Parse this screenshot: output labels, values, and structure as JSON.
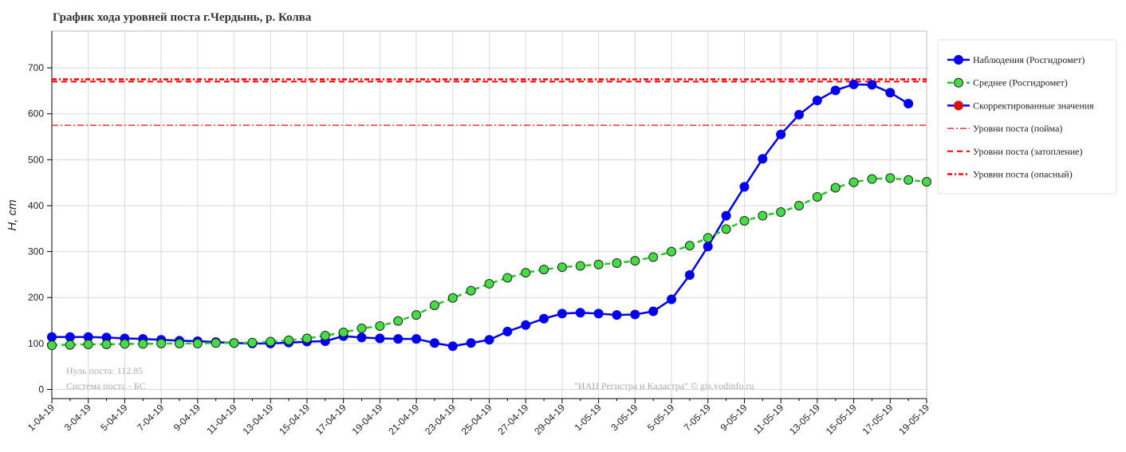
{
  "chart_data": {
    "type": "line",
    "title": "График хода уровней поста г.Чердынь, р. Колва",
    "y_label": "H, cm",
    "annotations": [
      "Нуль поста: 112.85",
      "Система поста - БС",
      "\"ИАЦ Регистра и Кадастра\" © gis.vodinfo.ru"
    ],
    "categories": [
      "1-04-19",
      null,
      "3-04-19",
      null,
      "5-04-19",
      null,
      "7-04-19",
      null,
      "9-04-19",
      null,
      "11-04-19",
      null,
      "13-04-19",
      null,
      "15-04-19",
      null,
      "17-04-19",
      null,
      "19-04-19",
      null,
      "21-04-19",
      null,
      "23-04-19",
      null,
      "25-04-19",
      null,
      "27-04-19",
      null,
      "29-04-19",
      null,
      "1-05-19",
      null,
      "3-05-19",
      null,
      "5-05-19",
      null,
      "7-05-19",
      null,
      "9-05-19",
      null,
      "11-05-19",
      null,
      "13-05-19",
      null,
      "15-05-19",
      null,
      "17-05-19",
      null,
      "19-05-19"
    ],
    "ylim": [
      -20,
      780
    ],
    "yticks": [
      0,
      100,
      200,
      300,
      400,
      500,
      600,
      700
    ],
    "grid": true,
    "series": [
      {
        "name": "Наблюдения (Росгидромет)",
        "color": "#0000ee",
        "marker_color": "#0000ee",
        "dash": "solid",
        "values": [
          114,
          114,
          114,
          113,
          111,
          110,
          108,
          106,
          105,
          103,
          101,
          100,
          100,
          102,
          104,
          105,
          116,
          113,
          111,
          110,
          110,
          101,
          94,
          101,
          108,
          126,
          140,
          154,
          165,
          167,
          165,
          162,
          163,
          170,
          196,
          249,
          311,
          378,
          441,
          502,
          555,
          598,
          629,
          651,
          664,
          663,
          646,
          622,
          null
        ]
      },
      {
        "name": "Среднее (Росгидромет)",
        "color": "#22cc22",
        "marker_color": "#44dd44",
        "dash": "dashed",
        "values": [
          96,
          97,
          98,
          98,
          99,
          99,
          100,
          100,
          100,
          101,
          101,
          102,
          104,
          107,
          111,
          117,
          124,
          133,
          138,
          149,
          162,
          183,
          199,
          215,
          230,
          243,
          254,
          261,
          266,
          269,
          272,
          275,
          280,
          288,
          300,
          313,
          330,
          349,
          367,
          378,
          386,
          400,
          419,
          439,
          451,
          458,
          460,
          456,
          452
        ]
      },
      {
        "name": "Скорректированные значения",
        "color": "#0000ee",
        "marker_color": "#dd1111",
        "dash": "solid",
        "values": [
          null,
          null,
          null,
          null,
          null,
          null,
          null,
          null,
          null,
          null,
          null,
          null,
          null,
          null,
          null,
          null,
          null,
          null,
          null,
          null,
          null,
          null,
          null,
          null,
          null,
          null,
          null,
          null,
          null,
          null,
          null,
          null,
          null,
          null,
          null,
          null,
          null,
          null,
          null,
          null,
          null,
          null,
          null,
          null,
          null,
          null,
          null,
          null,
          null
        ]
      }
    ],
    "levels": [
      {
        "name": "Уровни поста (пойма)",
        "value": 575,
        "color": "#ff0000",
        "dash": "dashdot"
      },
      {
        "name": "Уровни поста (затопление)",
        "value": 670,
        "color": "#ff0000",
        "dash": "dashed"
      },
      {
        "name": "Уровни поста (опасный)",
        "value": 675,
        "color": "#ff0000",
        "dash": "dashdotbold"
      }
    ],
    "legend": "upper right"
  }
}
